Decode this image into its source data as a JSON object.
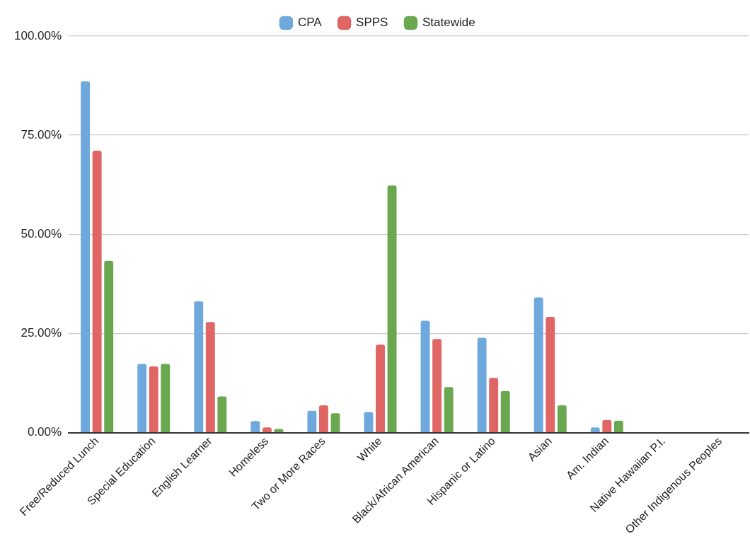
{
  "chart_data": {
    "type": "bar",
    "categories": [
      "Free/Reduced Lunch",
      "Special Education",
      "English Learner",
      "Homeless",
      "Two or More Races",
      "White",
      "Black/African American",
      "Hispanic or Latino",
      "Asian",
      "Am. Indian",
      "Native Hawaiian P.I.",
      "Other Indigenous Peoples"
    ],
    "series": [
      {
        "name": "CPA",
        "color": "#6fa8dc",
        "values": [
          88.6,
          17.3,
          33.1,
          2.9,
          5.5,
          5.2,
          28.2,
          23.9,
          34.1,
          1.3,
          null,
          0
        ]
      },
      {
        "name": "SPPS",
        "color": "#e06666",
        "values": [
          71.1,
          16.7,
          27.9,
          1.3,
          6.9,
          22.2,
          23.6,
          13.8,
          29.2,
          3.2,
          null,
          0
        ]
      },
      {
        "name": "Statewide",
        "color": "#6aa84f",
        "values": [
          43.3,
          17.3,
          9.1,
          0.9,
          4.9,
          62.3,
          11.5,
          10.5,
          6.9,
          3.0,
          null,
          null
        ]
      }
    ],
    "ylim": [
      0,
      100
    ],
    "yticks": [
      {
        "value": 0,
        "label": "0.00%"
      },
      {
        "value": 25,
        "label": "25.00%"
      },
      {
        "value": 50,
        "label": "50.00%"
      },
      {
        "value": 75,
        "label": "75.00%"
      },
      {
        "value": 100,
        "label": "100.00%"
      }
    ],
    "grid": "y",
    "legend": "top"
  }
}
